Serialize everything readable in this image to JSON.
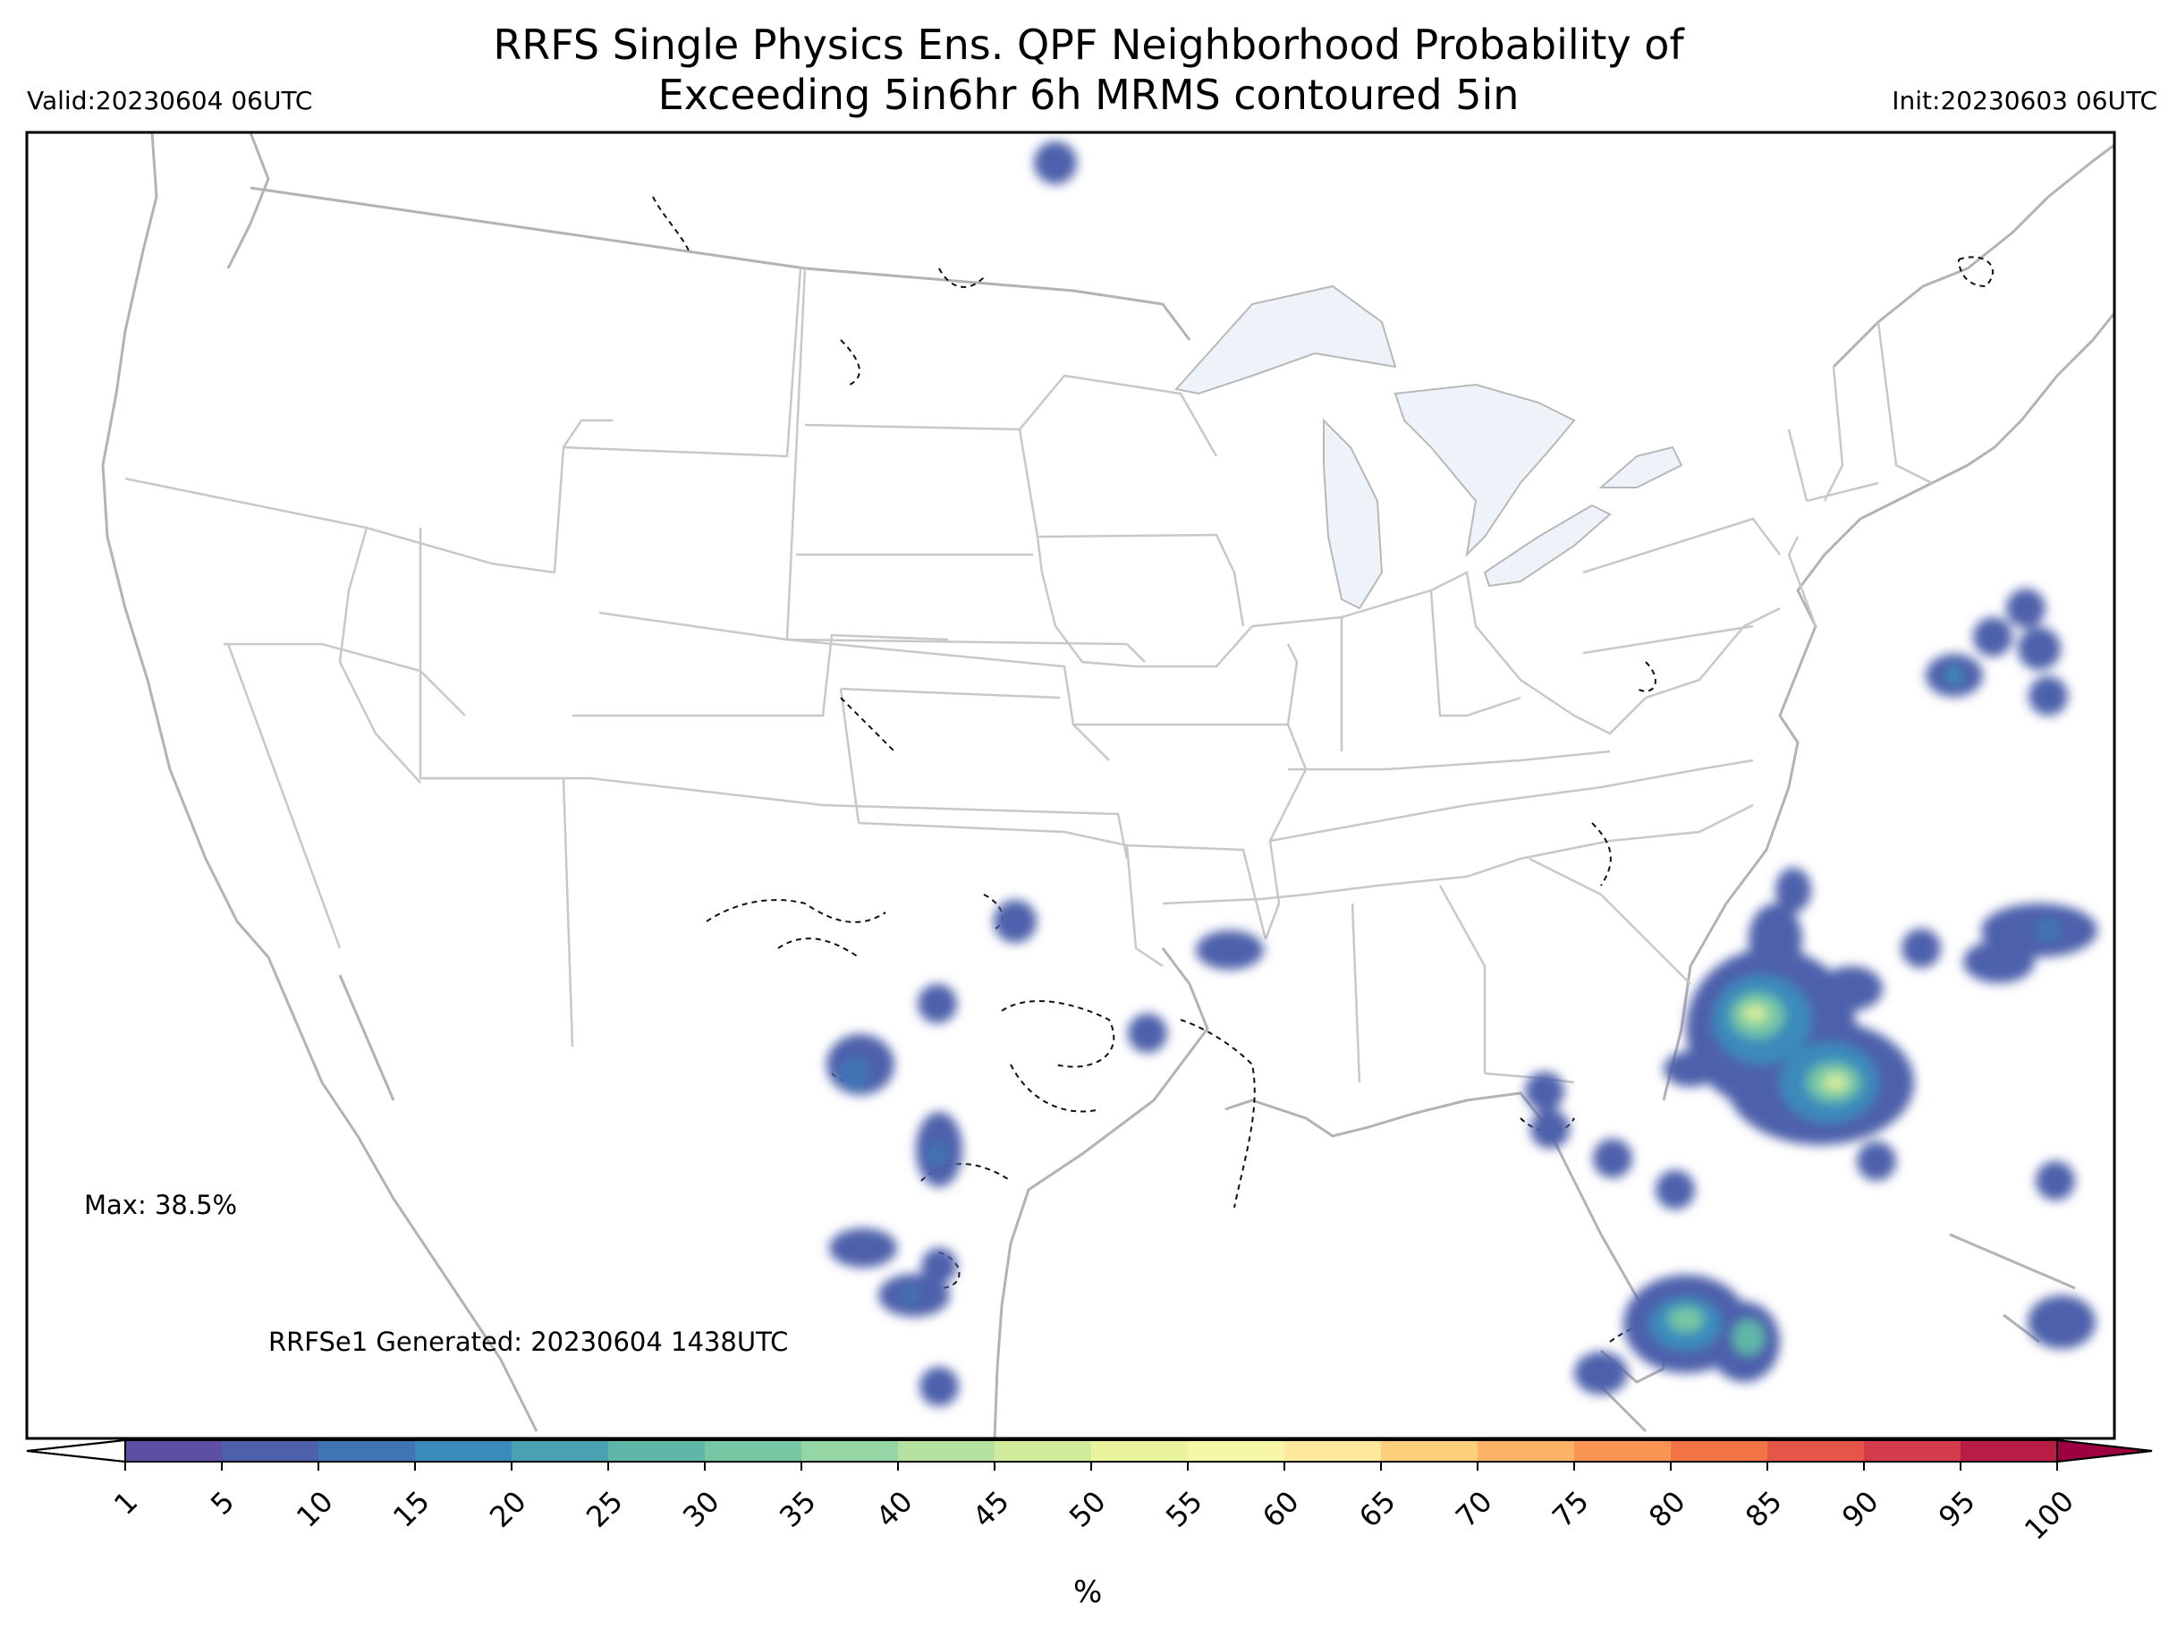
{
  "header": {
    "title_line1": "RRFS Single Physics Ens. QPF Neighborhood Probability of",
    "title_line2": "Exceeding 5in6hr 6h MRMS contoured 5in",
    "valid": "Valid:20230604 06UTC",
    "init": "Init:20230603 06UTC"
  },
  "annotations": {
    "max": "Max: 38.5%",
    "generated": "RRFSe1 Generated: 20230604 1438UTC"
  },
  "colorbar": {
    "unit": "%",
    "ticks": [
      "1",
      "5",
      "10",
      "15",
      "20",
      "25",
      "30",
      "35",
      "40",
      "45",
      "50",
      "55",
      "60",
      "65",
      "70",
      "75",
      "80",
      "85",
      "90",
      "95",
      "100"
    ],
    "colors": [
      "#5e4fa2",
      "#4d60ab",
      "#3f75b4",
      "#3a8bbb",
      "#4aa1b2",
      "#5eb7a7",
      "#76c8a4",
      "#96d5a4",
      "#b5e1a1",
      "#d1ec9c",
      "#e9f49d",
      "#f7f7aa",
      "#fde89b",
      "#fed07e",
      "#fdb366",
      "#f99455",
      "#f47446",
      "#e55648",
      "#d23c4b",
      "#b81d46",
      "#9e0142"
    ],
    "under_color": "#ffffff",
    "over_color": "#9e0142"
  },
  "probability_areas": [
    {
      "region": "north-dakota",
      "peak_percent": 5
    },
    {
      "region": "oklahoma",
      "peak_percent": 5
    },
    {
      "region": "west-texas",
      "peak_percent": 10
    },
    {
      "region": "central-texas",
      "peak_percent": 10
    },
    {
      "region": "south-texas",
      "peak_percent": 10
    },
    {
      "region": "arkansas",
      "peak_percent": 10
    },
    {
      "region": "florida-panhandle",
      "peak_percent": 5
    },
    {
      "region": "atlantic-offshore",
      "peak_percent": 38.5
    },
    {
      "region": "south-florida",
      "peak_percent": 30
    },
    {
      "region": "bahamas",
      "peak_percent": 10
    }
  ]
}
